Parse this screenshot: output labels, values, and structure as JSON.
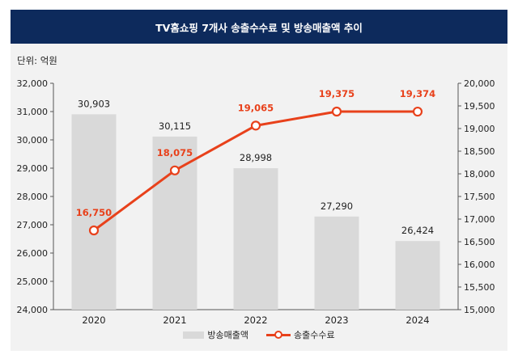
{
  "chart_data": {
    "type": "bar",
    "title": "TV홈쇼핑 7개사 송출수수료 및 방송매출액 추이",
    "unit_label": "단위: 억원",
    "categories": [
      "2020",
      "2021",
      "2022",
      "2023",
      "2024"
    ],
    "series": [
      {
        "name": "방송매출액",
        "type": "bar",
        "axis": "left",
        "values": [
          30903,
          30115,
          28998,
          27290,
          26424
        ],
        "labels": [
          "30,903",
          "30,115",
          "28,998",
          "27,290",
          "26,424"
        ]
      },
      {
        "name": "송출수수료",
        "type": "line",
        "axis": "right",
        "values": [
          16750,
          18075,
          19065,
          19375,
          19374
        ],
        "labels": [
          "16,750",
          "18,075",
          "19,065",
          "19,375",
          "19,374"
        ]
      }
    ],
    "y_left": {
      "ylim": [
        24000,
        32000
      ],
      "ticks": [
        "24,000",
        "25,000",
        "26,000",
        "27,000",
        "28,000",
        "29,000",
        "30,000",
        "31,000",
        "32,000"
      ]
    },
    "y_right": {
      "ylim": [
        15000,
        20000
      ],
      "ticks": [
        "15,000",
        "15,500",
        "16,000",
        "16,500",
        "17,000",
        "17,500",
        "18,000",
        "18,500",
        "19,000",
        "19,500",
        "20,000"
      ]
    },
    "legend_position": "bottom",
    "grid": false,
    "colors": {
      "title_bg": "#0d2a5c",
      "bar": "#d9d9d9",
      "line": "#e8411b"
    }
  }
}
